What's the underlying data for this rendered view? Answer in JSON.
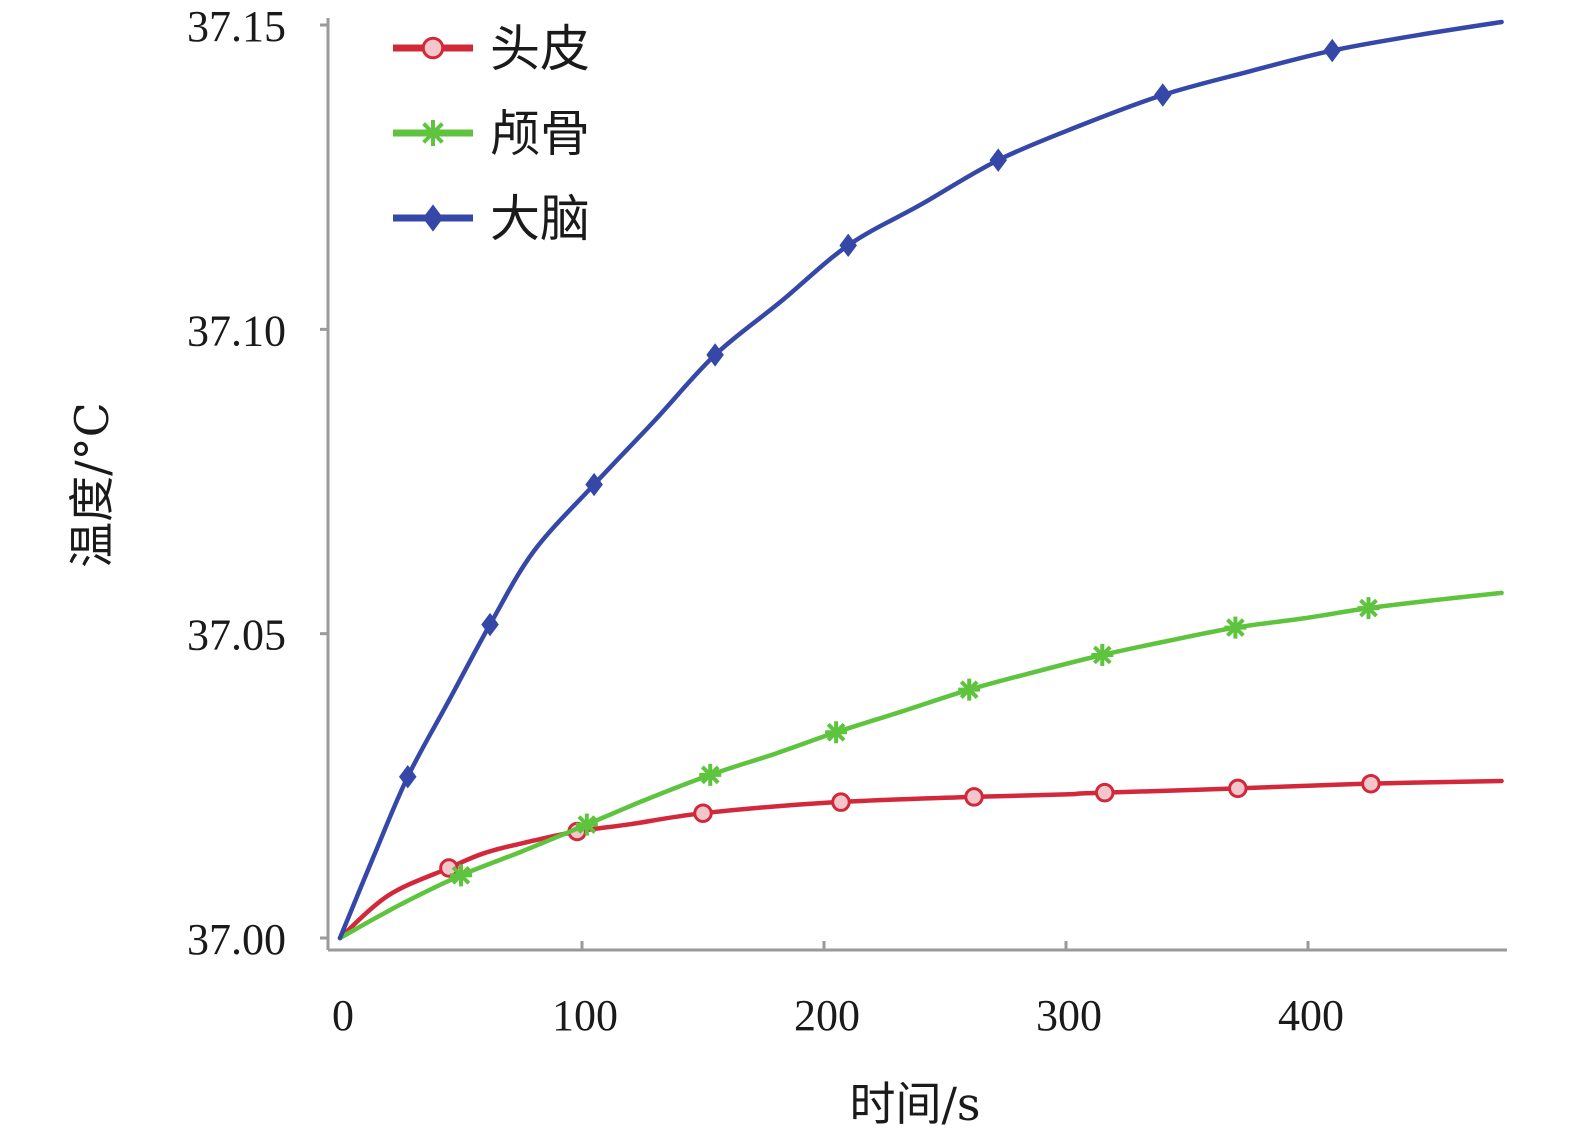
{
  "chart_data": {
    "type": "line",
    "xlabel": "时间/s",
    "ylabel": "温度/°C",
    "xlim": [
      -6,
      480
    ],
    "ylim": [
      37.0,
      37.15
    ],
    "xticks": [
      {
        "value": 0,
        "label": "0"
      },
      {
        "value": 100,
        "label": "100"
      },
      {
        "value": 200,
        "label": "200"
      },
      {
        "value": 300,
        "label": "300"
      },
      {
        "value": 400,
        "label": "400"
      }
    ],
    "yticks": [
      {
        "value": 37.0,
        "label": "37.00"
      },
      {
        "value": 37.05,
        "label": "37.05"
      },
      {
        "value": 37.1,
        "label": "37.10"
      },
      {
        "value": 37.15,
        "label": "37.15"
      }
    ],
    "legend": "top-left",
    "grid": false,
    "series": [
      {
        "name": "头皮",
        "color": "#d2283a",
        "marker": "circle",
        "points": [
          [
            0,
            37.0
          ],
          [
            20,
            37.007
          ],
          [
            45,
            37.0115
          ],
          [
            60,
            37.014
          ],
          [
            80,
            37.016
          ],
          [
            98,
            37.0175
          ],
          [
            120,
            37.0187
          ],
          [
            150,
            37.0205
          ],
          [
            200,
            37.0222
          ],
          [
            255,
            37.0231
          ],
          [
            300,
            37.0236
          ],
          [
            310,
            37.0238
          ],
          [
            365,
            37.0245
          ],
          [
            420,
            37.0253
          ],
          [
            480,
            37.0258
          ]
        ],
        "markers_x": [
          45,
          98,
          150,
          207,
          262,
          316,
          371,
          426
        ]
      },
      {
        "name": "颅骨",
        "color": "#5ec43e",
        "marker": "asterisk",
        "points": [
          [
            0,
            37.0
          ],
          [
            25,
            37.0055
          ],
          [
            50,
            37.0103
          ],
          [
            75,
            37.0142
          ],
          [
            100,
            37.0183
          ],
          [
            125,
            37.0225
          ],
          [
            153,
            37.0268
          ],
          [
            180,
            37.0303
          ],
          [
            205,
            37.0338
          ],
          [
            232,
            37.0372
          ],
          [
            260,
            37.0408
          ],
          [
            288,
            37.0438
          ],
          [
            315,
            37.0465
          ],
          [
            342,
            37.0488
          ],
          [
            370,
            37.051
          ],
          [
            398,
            37.0525
          ],
          [
            425,
            37.0542
          ],
          [
            452,
            37.0555
          ],
          [
            480,
            37.0567
          ]
        ],
        "markers_x": [
          50,
          102,
          153,
          205,
          260,
          315,
          370,
          425
        ]
      },
      {
        "name": "大脑",
        "color": "#3548a8",
        "marker": "diamond",
        "points": [
          [
            0,
            37.0
          ],
          [
            14,
            37.0135
          ],
          [
            28,
            37.0265
          ],
          [
            45,
            37.039
          ],
          [
            62,
            37.0515
          ],
          [
            80,
            37.0635
          ],
          [
            105,
            37.0745
          ],
          [
            130,
            37.085
          ],
          [
            155,
            37.0958
          ],
          [
            182,
            37.1045
          ],
          [
            210,
            37.1138
          ],
          [
            240,
            37.1205
          ],
          [
            272,
            37.1278
          ],
          [
            306,
            37.1335
          ],
          [
            340,
            37.1385
          ],
          [
            375,
            37.1423
          ],
          [
            410,
            37.1458
          ],
          [
            445,
            37.1483
          ],
          [
            480,
            37.1505
          ]
        ],
        "markers_x": [
          28,
          62,
          105,
          155,
          210,
          272,
          340,
          410
        ]
      }
    ]
  }
}
